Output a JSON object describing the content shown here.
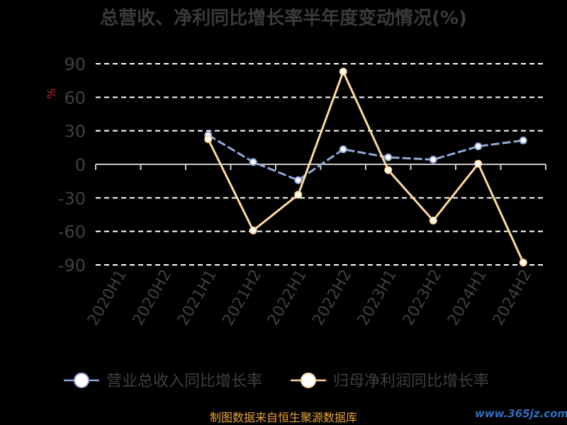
{
  "chart_data": {
    "type": "line",
    "title": "总营收、净利同比增长率半年度变动情况(%)",
    "ylabel": "%",
    "categories": [
      "2020H1",
      "2020H2",
      "2021H1",
      "2021H2",
      "2022H1",
      "2022H2",
      "2023H1",
      "2023H2",
      "2024H1",
      "2024H2"
    ],
    "y_ticks": [
      "90",
      "60",
      "30",
      "0",
      "-30",
      "-60",
      "-90"
    ],
    "ylim": [
      -90,
      90
    ],
    "grid": true,
    "legend_position": "bottom",
    "series": [
      {
        "name": "营业总收入同比增长率",
        "color": "#8fa8d8",
        "values": [
          null,
          null,
          26.18,
          2.05,
          -14.21,
          13.46,
          6.26,
          4.21,
          16.1,
          21.4
        ]
      },
      {
        "name": "归母净利润同比增长率",
        "color": "#ffd9a0",
        "values": [
          null,
          null,
          22.5,
          -59.17,
          -27.14,
          82.95,
          -5.12,
          -50.29,
          0.52,
          -87.88
        ]
      }
    ]
  },
  "footer": {
    "source": "制图数据来自恒生聚源数据库",
    "watermark": "www.365jz.com"
  },
  "colors": {
    "background": "#000000",
    "axis": "#cccccc",
    "grid": "#ffffff",
    "title": "#3a3a3a",
    "tick_text": "#3f3f3f",
    "source_text": "#e8a23c",
    "watermark": "#2f6fc0"
  }
}
